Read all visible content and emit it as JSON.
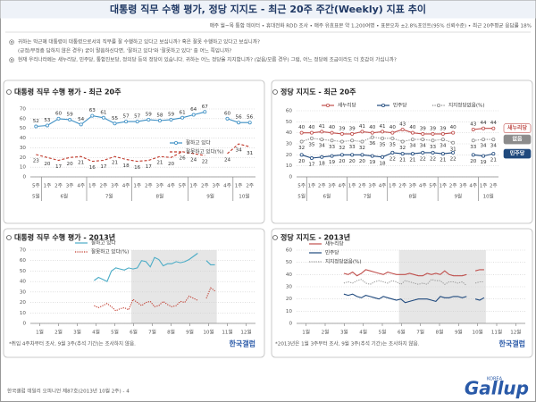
{
  "header": {
    "title": "대통령 직무 수행 평가, 정당 지지도 - 최근 20주 주간(Weekly) 지표 추이",
    "subtitle": "매주 월~목 통합 데이터 • 휴대전화 RDD 조사 • 매주 유효표본 약 1,200여명 • 표본오차 ±2.8%포인트(95% 신뢰수준) • 최근 20주평균 응답률 18%"
  },
  "questions": [
    "귀하는 박근혜 대통령이 대통령으로서의 직무를 잘 수행하고 있다고 보십니까? 혹은 잘못 수행하고 있다고 보십니까?",
    "(긍정/부정층 답하지 않은 경우) 굳이 말씀하신다면, '잘하고 있다'와 '잘못하고 있다' 중 어느 쪽입니까?",
    "현재 우리나라에는 새누리당, 민주당, 통합진보당, 정의당 등의 정당이 있습니다. 귀하는 어느 정당을 지지합니까? (없음/모름 경우) 그럼, 어느 정당에 조금이라도 더 호감이 가십니까?"
  ],
  "chart_data": [
    {
      "type": "line",
      "title": "대통령 직무 수행 평가 - 최근 20주",
      "categories": [
        "5주",
        "1주",
        "2주",
        "3주",
        "4주",
        "1주",
        "2주",
        "3주",
        "4주",
        "1주",
        "2주",
        "3주",
        "4주",
        "5주",
        "1주",
        "2주",
        "3주",
        "4주",
        "1주",
        "2주"
      ],
      "months": [
        "5월",
        "6월",
        null,
        null,
        null,
        "7월",
        null,
        null,
        null,
        "8월",
        null,
        null,
        null,
        null,
        "9월",
        null,
        null,
        null,
        "10월",
        null
      ],
      "ylim": [
        0,
        70
      ],
      "yticks": [
        0,
        10,
        20,
        30,
        40,
        50,
        60,
        70
      ],
      "grid": true,
      "series": [
        {
          "name": "잘하고 있다",
          "color": "#3d8fc4",
          "style": "solid",
          "markers": true,
          "labels": "above",
          "values": [
            52,
            53,
            60,
            59,
            54,
            63,
            61,
            55,
            57,
            57,
            59,
            58,
            59,
            61,
            64,
            67,
            null,
            60,
            56,
            56
          ]
        },
        {
          "name": "잘못하고 있다(%)",
          "color": "#c0392b",
          "style": "dashed",
          "markers": false,
          "labels": "below",
          "values": [
            23,
            20,
            17,
            20,
            21,
            16,
            17,
            21,
            18,
            16,
            17,
            21,
            20,
            26,
            24,
            22,
            null,
            24,
            34,
            31
          ]
        }
      ]
    },
    {
      "type": "line",
      "title": "정당 지지도 - 최근 20주",
      "categories": [
        "5주",
        "1주",
        "2주",
        "3주",
        "4주",
        "1주",
        "2주",
        "3주",
        "4주",
        "1주",
        "2주",
        "3주",
        "4주",
        "5주",
        "1주",
        "2주",
        "3주",
        "4주",
        "1주",
        "2주"
      ],
      "months": [
        "5월",
        "6월",
        null,
        null,
        null,
        "7월",
        null,
        null,
        null,
        "8월",
        null,
        null,
        null,
        null,
        "9월",
        null,
        null,
        null,
        "10월",
        null
      ],
      "ylim": [
        0,
        60
      ],
      "yticks": [
        0,
        10,
        20,
        30,
        40,
        50,
        60
      ],
      "grid": true,
      "end_labels": [
        "새누리당",
        "민주당",
        "없음"
      ],
      "series": [
        {
          "name": "새누리당",
          "color": "#c0504d",
          "style": "solid",
          "markers": true,
          "labels": "above",
          "values": [
            40,
            40,
            41,
            40,
            39,
            39,
            41,
            40,
            41,
            40,
            43,
            40,
            39,
            39,
            39,
            40,
            null,
            43,
            44,
            44
          ]
        },
        {
          "name": "민주당",
          "color": "#1f497d",
          "style": "solid",
          "markers": true,
          "labels": "below",
          "values": [
            20,
            17,
            18,
            19,
            20,
            20,
            20,
            19,
            18,
            22,
            21,
            21,
            22,
            22,
            21,
            22,
            null,
            20,
            19,
            21
          ]
        },
        {
          "name": "지지정당없음(%)",
          "color": "#8c8c8c",
          "style": "dotted",
          "markers": true,
          "labels": "below",
          "values": [
            32,
            35,
            34,
            33,
            32,
            33,
            32,
            36,
            35,
            35,
            32,
            34,
            34,
            33,
            34,
            31,
            null,
            33,
            34,
            34
          ]
        }
      ]
    },
    {
      "type": "line",
      "title": "대통령 직무 수행 평가 - 2013년",
      "xlim": [
        0.5,
        12.5
      ],
      "xticks": [
        {
          "value": 1,
          "label": "1월"
        },
        {
          "value": 2,
          "label": "2월"
        },
        {
          "value": 3,
          "label": "3월"
        },
        {
          "value": 4,
          "label": "4월"
        },
        {
          "value": 5,
          "label": "5월"
        },
        {
          "value": 6,
          "label": "6월"
        },
        {
          "value": 7,
          "label": "7월"
        },
        {
          "value": 8,
          "label": "8월"
        },
        {
          "value": 9,
          "label": "9월"
        },
        {
          "value": 10,
          "label": "10월"
        },
        {
          "value": 11,
          "label": "11월"
        },
        {
          "value": 12,
          "label": "12월"
        }
      ],
      "ylim": [
        0,
        70
      ],
      "yticks": [
        0,
        10,
        20,
        30,
        40,
        50,
        60,
        70
      ],
      "grid": true,
      "x": [
        3.9,
        4.13,
        4.36,
        4.59,
        4.82,
        5.05,
        5.28,
        5.51,
        5.74,
        5.97,
        6.2,
        6.43,
        6.66,
        6.89,
        7.12,
        7.35,
        7.58,
        7.81,
        8.04,
        8.27,
        8.5,
        8.73,
        8.96,
        9.19,
        9.42,
        9.65,
        9.88,
        10.11,
        10.34
      ],
      "footnote": "*취임 4주차부터 조사, 9월 3주(추석 기간)는 조사하지 않음.",
      "brand": "한국갤럽",
      "series": [
        {
          "name": "잘하고 있다",
          "color": "#4bacc6",
          "style": "solid",
          "values": [
            41,
            44,
            42,
            40,
            50,
            53,
            52,
            51,
            53,
            52,
            53,
            60,
            59,
            54,
            63,
            61,
            55,
            57,
            57,
            59,
            58,
            59,
            61,
            64,
            67,
            null,
            60,
            56,
            56
          ]
        },
        {
          "name": "잘못하고 있다(%)",
          "color": "#c0392b",
          "style": "dotted",
          "values": [
            17,
            15,
            17,
            19,
            16,
            12,
            14,
            15,
            13,
            23,
            20,
            17,
            20,
            21,
            16,
            17,
            21,
            18,
            16,
            17,
            21,
            20,
            26,
            24,
            22,
            null,
            24,
            34,
            31
          ]
        }
      ]
    },
    {
      "type": "line",
      "title": "정당 지지도 - 2013년",
      "xlim": [
        0.5,
        12.5
      ],
      "xticks": [
        {
          "value": 1,
          "label": "1월"
        },
        {
          "value": 2,
          "label": "2월"
        },
        {
          "value": 3,
          "label": "3월"
        },
        {
          "value": 4,
          "label": "4월"
        },
        {
          "value": 5,
          "label": "5월"
        },
        {
          "value": 6,
          "label": "6월"
        },
        {
          "value": 7,
          "label": "7월"
        },
        {
          "value": 8,
          "label": "8월"
        },
        {
          "value": 9,
          "label": "9월"
        },
        {
          "value": 10,
          "label": "10월"
        },
        {
          "value": 11,
          "label": "11월"
        },
        {
          "value": 12,
          "label": "12월"
        }
      ],
      "ylim": [
        0,
        60
      ],
      "yticks": [
        0,
        10,
        20,
        30,
        40,
        50,
        60
      ],
      "grid": true,
      "x": [
        2.98,
        3.21,
        3.44,
        3.67,
        3.9,
        4.13,
        4.36,
        4.59,
        4.82,
        5.05,
        5.28,
        5.51,
        5.74,
        5.97,
        6.2,
        6.43,
        6.66,
        6.89,
        7.12,
        7.35,
        7.58,
        7.81,
        8.04,
        8.27,
        8.5,
        8.73,
        8.96,
        9.19,
        9.42,
        9.65,
        9.88,
        10.11,
        10.34
      ],
      "footnote": "*2013년은 1월 3주부터 조사, 9월 3주(추석 기간)는 조사하지 않음.",
      "brand": "한국갤럽",
      "series": [
        {
          "name": "새누리당",
          "color": "#c0504d",
          "style": "solid",
          "values": [
            41,
            40,
            42,
            39,
            41,
            44,
            43,
            42,
            41,
            40,
            42,
            41,
            40,
            40,
            40,
            41,
            40,
            39,
            39,
            41,
            40,
            41,
            40,
            43,
            40,
            39,
            39,
            39,
            40,
            null,
            43,
            44,
            44
          ]
        },
        {
          "name": "민주당",
          "color": "#1f497d",
          "style": "solid",
          "values": [
            24,
            23,
            24,
            22,
            21,
            23,
            22,
            21,
            20,
            22,
            21,
            20,
            19,
            20,
            17,
            18,
            19,
            20,
            20,
            20,
            19,
            18,
            22,
            21,
            21,
            22,
            22,
            21,
            22,
            null,
            20,
            19,
            21
          ]
        },
        {
          "name": "지지정당없음(%)",
          "color": "#9a9a9a",
          "style": "dotted",
          "values": [
            33,
            34,
            33,
            35,
            36,
            33,
            32,
            34,
            35,
            34,
            33,
            35,
            34,
            32,
            35,
            34,
            33,
            32,
            33,
            32,
            36,
            35,
            35,
            32,
            34,
            34,
            33,
            34,
            31,
            null,
            33,
            34,
            34
          ]
        }
      ]
    }
  ],
  "footer": {
    "text": "한국갤럽 데일리 오피니언 제87호(2013년 10월 2주) - 4",
    "logo": "Gallup",
    "logo_sub": "KOREA"
  }
}
